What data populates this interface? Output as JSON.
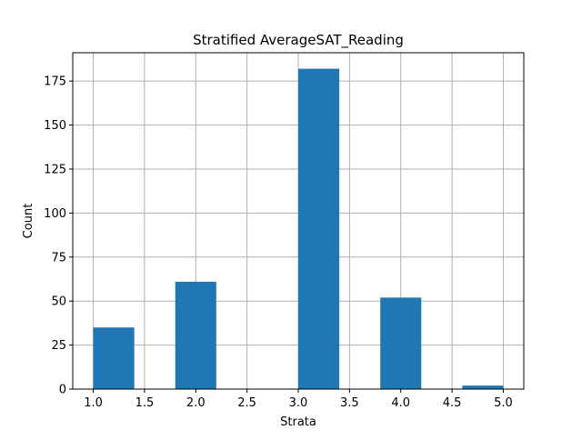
{
  "chart_data": {
    "type": "bar",
    "title": "Stratified AverageSAT_Reading",
    "xlabel": "Strata",
    "ylabel": "Count",
    "bins": [
      {
        "x0": 1.0,
        "x1": 1.4,
        "count": 35
      },
      {
        "x0": 1.4,
        "x1": 1.8,
        "count": 0
      },
      {
        "x0": 1.8,
        "x1": 2.2,
        "count": 61
      },
      {
        "x0": 2.2,
        "x1": 2.6,
        "count": 0
      },
      {
        "x0": 2.6,
        "x1": 3.0,
        "count": 0
      },
      {
        "x0": 3.0,
        "x1": 3.4,
        "count": 182
      },
      {
        "x0": 3.4,
        "x1": 3.8,
        "count": 0
      },
      {
        "x0": 3.8,
        "x1": 4.2,
        "count": 52
      },
      {
        "x0": 4.2,
        "x1": 4.6,
        "count": 0
      },
      {
        "x0": 4.6,
        "x1": 5.0,
        "count": 2
      }
    ],
    "xlim": [
      0.8,
      5.2
    ],
    "ylim": [
      0,
      191.1
    ],
    "xticks": [
      "1.0",
      "1.5",
      "2.0",
      "2.5",
      "3.0",
      "3.5",
      "4.0",
      "4.5",
      "5.0"
    ],
    "yticks": [
      "0",
      "25",
      "50",
      "75",
      "100",
      "125",
      "150",
      "175"
    ],
    "grid": true,
    "bar_color": "#1f77b4",
    "grid_color": "#b0b0b0"
  }
}
